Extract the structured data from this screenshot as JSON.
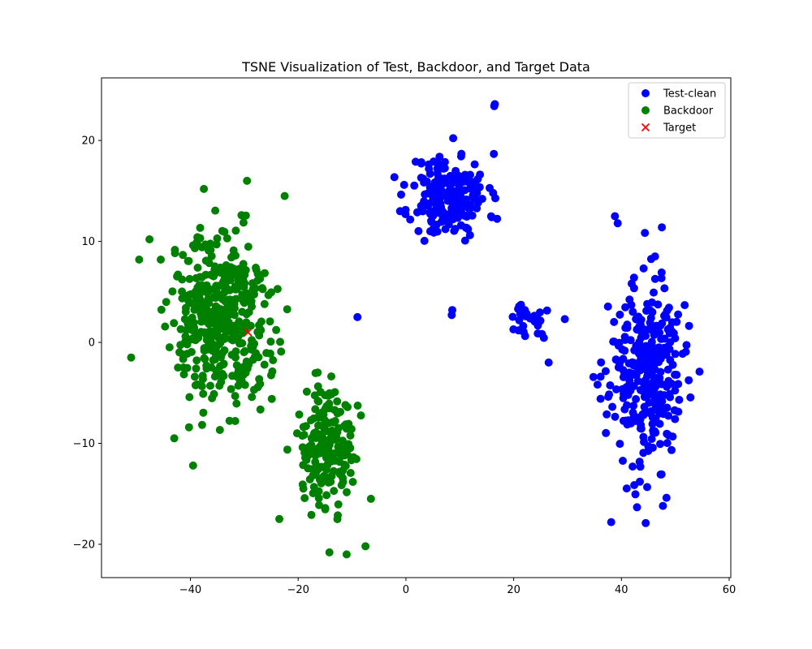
{
  "chart_data": {
    "type": "scatter",
    "title": "TSNE Visualization of Test, Backdoor, and Target Data",
    "xlabel": "",
    "ylabel": "",
    "xlim": [
      -56.5,
      60.3
    ],
    "ylim": [
      -23.3,
      26.2
    ],
    "xticks": [
      -40,
      -20,
      0,
      20,
      40,
      60
    ],
    "yticks": [
      -20,
      -10,
      0,
      10,
      20
    ],
    "grid": false,
    "legend": {
      "placement": "top-right"
    },
    "series": [
      {
        "name": "Test-clean",
        "color": "#0000ff",
        "marker": "circle",
        "clusters": [
          {
            "cx": 8,
            "cy": 14.5,
            "sx": 6,
            "sy": 3.5,
            "n": 200,
            "seed": 11
          },
          {
            "cx": 44.5,
            "cy": -3,
            "sx": 5.5,
            "sy": 7.5,
            "n": 320,
            "seed": 23
          },
          {
            "cx": 23,
            "cy": 2,
            "sx": 2.5,
            "sy": 1.5,
            "n": 30,
            "seed": 37
          }
        ],
        "extra": [
          [
            16.5,
            23.6
          ],
          [
            16.4,
            23.4
          ],
          [
            -9,
            2.5
          ],
          [
            8.6,
            3.2
          ],
          [
            8.5,
            2.7
          ],
          [
            38.8,
            12.5
          ],
          [
            39.3,
            11.8
          ],
          [
            26.5,
            -2
          ],
          [
            29.5,
            2.3
          ],
          [
            54.5,
            -2.9
          ],
          [
            47.5,
            11.4
          ],
          [
            38.1,
            -17.8
          ],
          [
            44.5,
            -17.9
          ],
          [
            47.7,
            -16.2
          ]
        ]
      },
      {
        "name": "Backdoor",
        "color": "#008000",
        "marker": "circle",
        "clusters": [
          {
            "cx": -34,
            "cy": 2,
            "sx": 7.5,
            "sy": 7,
            "n": 430,
            "seed": 51
          },
          {
            "cx": -15,
            "cy": -11,
            "sx": 4,
            "sy": 5,
            "n": 190,
            "seed": 67
          }
        ],
        "extra": [
          [
            -37.5,
            15.2
          ],
          [
            -29.5,
            16
          ],
          [
            -22.5,
            14.5
          ],
          [
            -49.5,
            8.2
          ],
          [
            -51,
            -1.5
          ],
          [
            -14.2,
            -20.8
          ],
          [
            -11,
            -21
          ],
          [
            -7.5,
            -20.2
          ],
          [
            -6.5,
            -15.5
          ],
          [
            -39.5,
            -12.2
          ],
          [
            -23.5,
            -17.5
          ],
          [
            -43,
            -9.5
          ]
        ]
      },
      {
        "name": "Target",
        "color": "#ff0000",
        "marker": "x",
        "points": [
          [
            -29.3,
            1.0
          ]
        ]
      }
    ]
  }
}
